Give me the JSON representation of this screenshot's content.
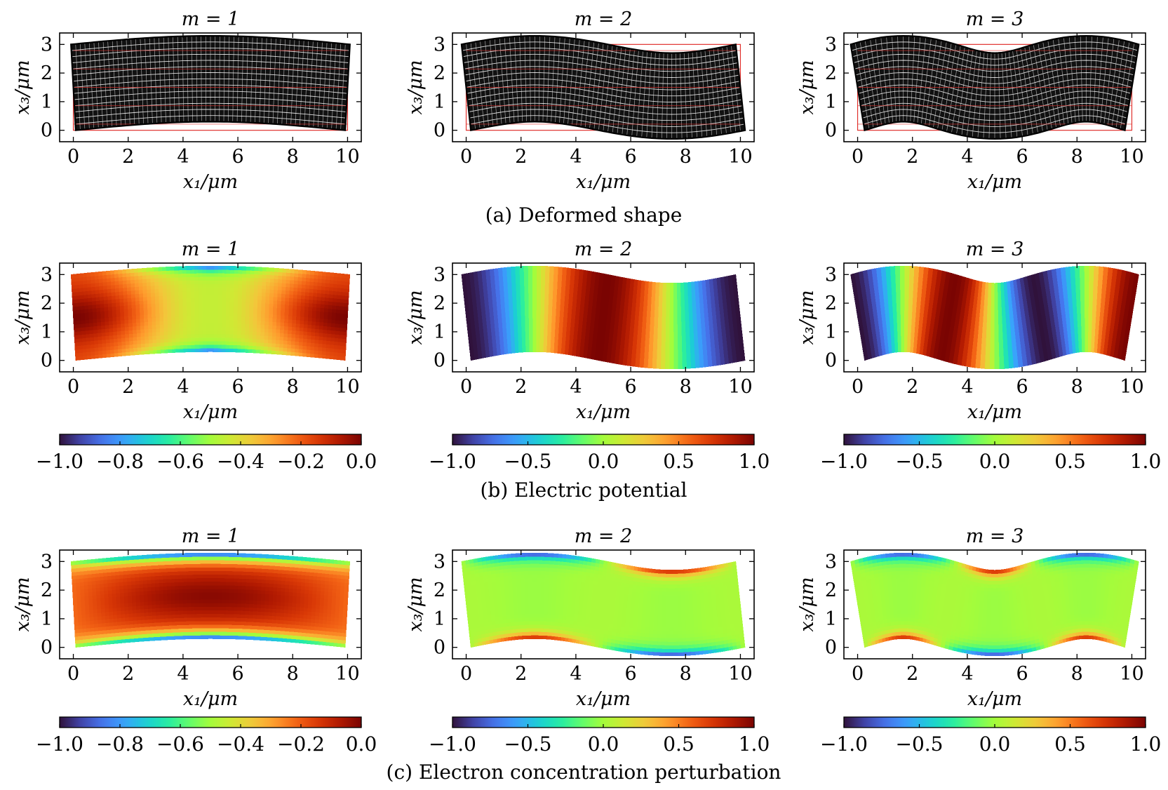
{
  "chart_data": {
    "type": "heatmap",
    "mode_titles": [
      "m = 1",
      "m = 2",
      "m = 3"
    ],
    "mode_numbers": [
      1,
      2,
      3
    ],
    "xlabel": "x₁/μm",
    "ylabel": "x₃/μm",
    "xlim": [
      -0.5,
      10.5
    ],
    "ylim": [
      -0.4,
      3.4
    ],
    "xticks": [
      0,
      2,
      4,
      6,
      8,
      10
    ],
    "yticks": [
      0,
      1,
      2,
      3
    ],
    "domain": {
      "length": 10,
      "height": 3
    },
    "deformation_amplitude": 0.3,
    "rows": [
      {
        "id": "a",
        "caption": "(a) Deformed shape",
        "kind": "mesh",
        "colors": {
          "undeformed_mesh": "#e0302c",
          "deformed_mesh": "#000000",
          "deformed_fill": "#ffffff"
        }
      },
      {
        "id": "b",
        "caption": "(b) Electric potential",
        "kind": "field",
        "field": "potential",
        "colorbars": [
          {
            "range": [
              -1.0,
              0.0
            ],
            "ticks": [
              "−1.0",
              "−0.8",
              "−0.6",
              "−0.4",
              "−0.2",
              "0.0"
            ]
          },
          {
            "range": [
              -1.0,
              1.0
            ],
            "ticks": [
              "−1.0",
              "−0.5",
              "0.0",
              "0.5",
              "1.0"
            ]
          },
          {
            "range": [
              -1.0,
              1.0
            ],
            "ticks": [
              "−1.0",
              "−0.5",
              "0.0",
              "0.5",
              "1.0"
            ]
          }
        ]
      },
      {
        "id": "c",
        "caption": "(c) Electron concentration perturbation",
        "kind": "field",
        "field": "electron",
        "colorbars": [
          {
            "range": [
              -1.0,
              0.0
            ],
            "ticks": [
              "−1.0",
              "−0.8",
              "−0.6",
              "−0.4",
              "−0.2",
              "0.0"
            ]
          },
          {
            "range": [
              -1.0,
              1.0
            ],
            "ticks": [
              "−1.0",
              "−0.5",
              "0.0",
              "0.5",
              "1.0"
            ]
          },
          {
            "range": [
              -1.0,
              1.0
            ],
            "ticks": [
              "−1.0",
              "−0.5",
              "0.0",
              "0.5",
              "1.0"
            ]
          }
        ]
      }
    ],
    "colormap": "turbo",
    "colormap_stops": [
      "#30123b",
      "#4145ab",
      "#4675ed",
      "#39a2fc",
      "#1bcfd4",
      "#24eca6",
      "#61fc6c",
      "#a4fc3b",
      "#d1e834",
      "#f3c63a",
      "#fe9b2d",
      "#f36315",
      "#d93806",
      "#b11901",
      "#7a0402"
    ]
  }
}
